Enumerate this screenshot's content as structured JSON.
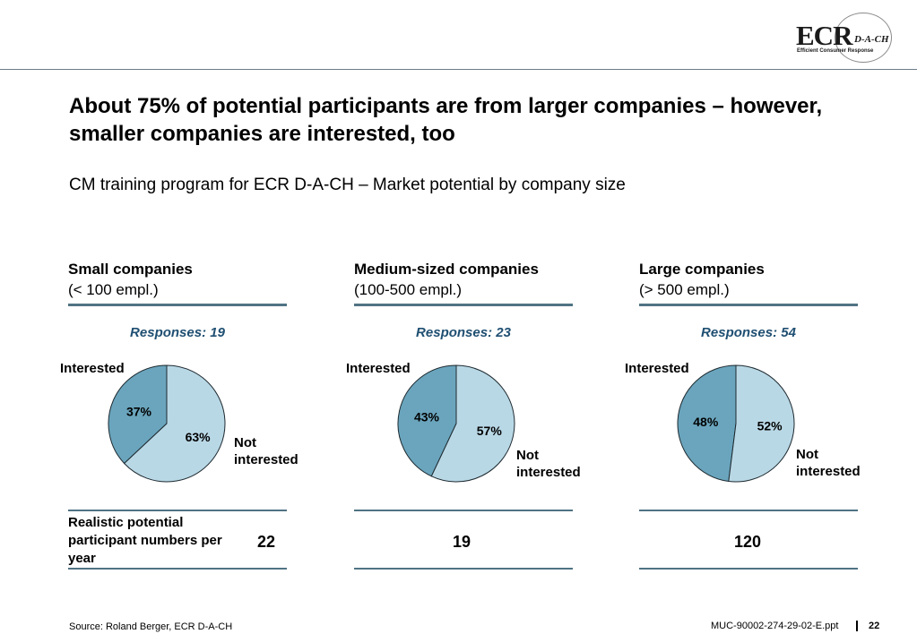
{
  "logo": {
    "main": "ECR",
    "region": "D-A-CH",
    "tagline": "Efficient Consumer Response"
  },
  "title": "About 75% of potential participants are from larger companies – however, smaller companies are interested, too",
  "subtitle": "CM training program for ECR D-A-CH – Market potential by company size",
  "potential_label": "Realistic potential participant numbers per year",
  "colors": {
    "interested": "#6aa5bd",
    "not_interested": "#b9d8e6",
    "rule": "#4f7384",
    "responses_text": "#1f4f72"
  },
  "chart_data": [
    {
      "type": "pie",
      "title": "Small companies",
      "subtitle": "(< 100 empl.)",
      "responses": "Responses: 19",
      "labels": [
        "Interested",
        "Not interested"
      ],
      "values": [
        37,
        63
      ],
      "value_labels": [
        "37%",
        "63%"
      ],
      "potential": "22"
    },
    {
      "type": "pie",
      "title": "Medium-sized companies",
      "subtitle": "(100-500 empl.)",
      "responses": "Responses: 23",
      "labels": [
        "Interested",
        "Not interested"
      ],
      "values": [
        43,
        57
      ],
      "value_labels": [
        "43%",
        "57%"
      ],
      "potential": "19"
    },
    {
      "type": "pie",
      "title": "Large companies",
      "subtitle": "(> 500 empl.)",
      "responses": "Responses: 54",
      "labels": [
        "Interested",
        "Not interested"
      ],
      "values": [
        48,
        52
      ],
      "value_labels": [
        "48%",
        "52%"
      ],
      "potential": "120"
    }
  ],
  "footer": {
    "source": "Source: Roland Berger, ECR D-A-CH",
    "docref": "MUC-90002-274-29-02-E.ppt",
    "page": "22"
  }
}
